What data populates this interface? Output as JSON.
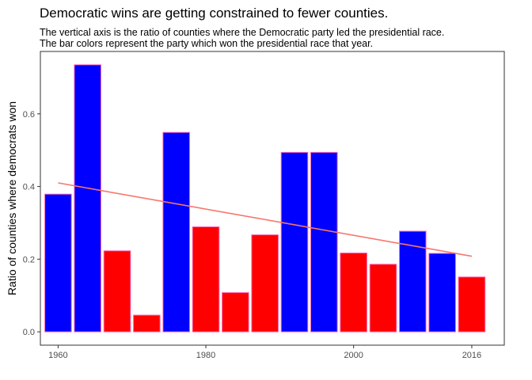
{
  "chart_data": {
    "type": "bar",
    "title": "Democratic wins are getting constrained to fewer counties.",
    "subtitle": [
      "The vertical axis is the ratio of counties where the Democratic party led the presidential race.",
      "The bar colors represent the party which won the presidential race that year."
    ],
    "xlabel": "",
    "ylabel": "Ratio of counties where democrats won",
    "x": [
      1960,
      1964,
      1968,
      1972,
      1976,
      1980,
      1984,
      1988,
      1992,
      1996,
      2000,
      2004,
      2008,
      2012,
      2016
    ],
    "values": [
      0.379,
      0.735,
      0.223,
      0.046,
      0.549,
      0.289,
      0.108,
      0.267,
      0.494,
      0.494,
      0.217,
      0.186,
      0.277,
      0.216,
      0.151
    ],
    "winner": [
      "D",
      "D",
      "R",
      "R",
      "D",
      "R",
      "R",
      "R",
      "D",
      "D",
      "R",
      "R",
      "D",
      "D",
      "R"
    ],
    "colors": {
      "D": "#0000ff",
      "R": "#ff0000",
      "outline": "#ff69b4",
      "trend": "#f8766d",
      "axis": "#333333"
    },
    "trend": {
      "x": [
        1960,
        2016
      ],
      "y": [
        0.41,
        0.208
      ]
    },
    "xticks": [
      1960,
      1980,
      2000,
      2016
    ],
    "yticks": [
      0.0,
      0.2,
      0.4,
      0.6
    ],
    "ytick_labels": [
      "0.0",
      "0.2",
      "0.4",
      "0.6"
    ],
    "xlim": [
      1957.6,
      2020.4
    ],
    "ylim": [
      -0.0367,
      0.7717
    ],
    "grid": false,
    "legend": "none"
  }
}
